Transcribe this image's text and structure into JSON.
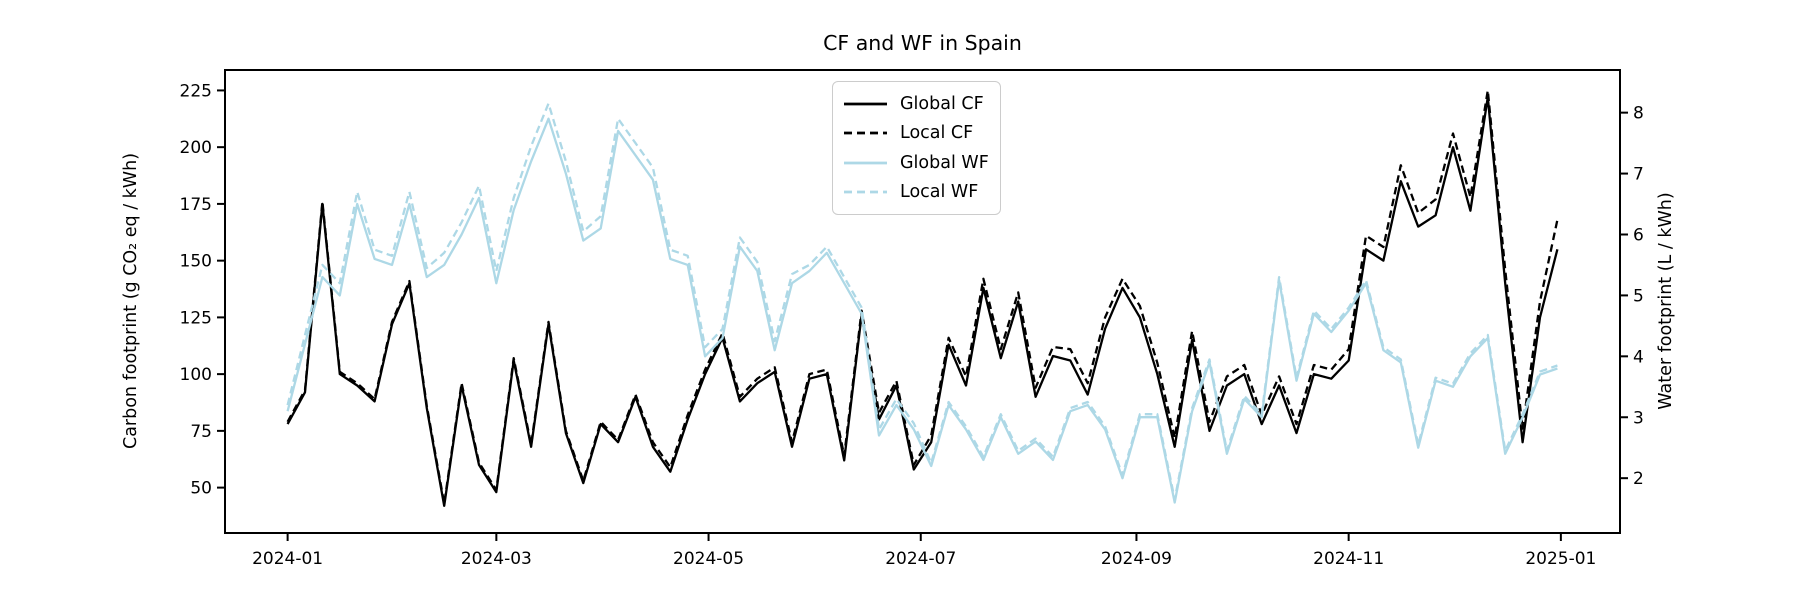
{
  "figure": {
    "title": "CF and WF in Spain"
  },
  "chart_data": {
    "type": "line",
    "title": "CF and WF in Spain",
    "ylabel_left": "Carbon footprint (g CO₂ eq / kWh)",
    "ylabel_right": "Water footprint (L / kWh)",
    "x_tick_labels": [
      "2024-01",
      "2024-03",
      "2024-05",
      "2024-07",
      "2024-09",
      "2024-11",
      "2025-01"
    ],
    "yticks_left": [
      50,
      75,
      100,
      125,
      150,
      175,
      200,
      225
    ],
    "yticks_right": [
      2,
      3,
      4,
      5,
      6,
      7,
      8
    ],
    "ylim_left": [
      30,
      234
    ],
    "ylim_right": [
      1.1,
      8.7
    ],
    "xlim": [
      "2023-12-14",
      "2025-01-18"
    ],
    "grid": false,
    "legend_position": "upper center",
    "colors": {
      "cf": "#000000",
      "wf": "#add8e6"
    },
    "sampling_note": "values estimated from plot at ~5-day resolution",
    "dates": [
      "2024-01-01",
      "2024-01-06",
      "2024-01-11",
      "2024-01-16",
      "2024-01-21",
      "2024-01-26",
      "2024-01-31",
      "2024-02-05",
      "2024-02-10",
      "2024-02-15",
      "2024-02-20",
      "2024-02-25",
      "2024-03-01",
      "2024-03-06",
      "2024-03-11",
      "2024-03-16",
      "2024-03-21",
      "2024-03-26",
      "2024-03-31",
      "2024-04-05",
      "2024-04-10",
      "2024-04-15",
      "2024-04-20",
      "2024-04-25",
      "2024-04-30",
      "2024-05-05",
      "2024-05-10",
      "2024-05-15",
      "2024-05-20",
      "2024-05-25",
      "2024-05-30",
      "2024-06-04",
      "2024-06-09",
      "2024-06-14",
      "2024-06-19",
      "2024-06-24",
      "2024-06-29",
      "2024-07-04",
      "2024-07-09",
      "2024-07-14",
      "2024-07-19",
      "2024-07-24",
      "2024-07-29",
      "2024-08-03",
      "2024-08-08",
      "2024-08-13",
      "2024-08-18",
      "2024-08-23",
      "2024-08-28",
      "2024-09-02",
      "2024-09-07",
      "2024-09-12",
      "2024-09-17",
      "2024-09-22",
      "2024-09-27",
      "2024-10-02",
      "2024-10-07",
      "2024-10-12",
      "2024-10-17",
      "2024-10-22",
      "2024-10-27",
      "2024-11-01",
      "2024-11-06",
      "2024-11-11",
      "2024-11-16",
      "2024-11-21",
      "2024-11-26",
      "2024-12-01",
      "2024-12-06",
      "2024-12-11",
      "2024-12-16",
      "2024-12-21",
      "2024-12-26",
      "2024-12-31"
    ],
    "series": [
      {
        "name": "Global CF",
        "axis": "left",
        "color": "#000000",
        "line_style": "solid",
        "values": [
          78,
          92,
          175,
          100,
          95,
          88,
          122,
          140,
          85,
          42,
          95,
          60,
          48,
          106,
          68,
          122,
          74,
          52,
          78,
          70,
          90,
          68,
          57,
          80,
          100,
          116,
          88,
          96,
          101,
          68,
          98,
          100,
          62,
          126,
          80,
          95,
          58,
          70,
          113,
          95,
          138,
          107,
          132,
          90,
          108,
          106,
          91,
          120,
          138,
          125,
          100,
          68,
          115,
          75,
          95,
          100,
          78,
          95,
          74,
          100,
          98,
          106,
          155,
          150,
          185,
          165,
          170,
          200,
          172,
          222,
          140,
          70,
          125,
          155
        ]
      },
      {
        "name": "Local CF",
        "axis": "left",
        "color": "#000000",
        "line_style": "dashed",
        "values": [
          79,
          93,
          176,
          101,
          96,
          89,
          123,
          141,
          86,
          43,
          96,
          61,
          49,
          107,
          69,
          123,
          75,
          53,
          79,
          71,
          91,
          70,
          59,
          82,
          102,
          118,
          90,
          98,
          103,
          70,
          100,
          102,
          64,
          128,
          83,
          97,
          60,
          73,
          116,
          99,
          142,
          111,
          136,
          94,
          112,
          111,
          96,
          125,
          142,
          130,
          105,
          72,
          119,
          79,
          99,
          104,
          82,
          99,
          78,
          104,
          102,
          111,
          161,
          156,
          192,
          171,
          177,
          206,
          178,
          225,
          146,
          76,
          132,
          168
        ]
      },
      {
        "name": "Global WF",
        "axis": "right",
        "color": "#add8e6",
        "line_style": "solid",
        "values": [
          3.1,
          4.2,
          5.3,
          5.0,
          6.5,
          5.6,
          5.5,
          6.5,
          5.3,
          5.5,
          6.0,
          6.6,
          5.2,
          6.4,
          7.2,
          7.9,
          7.0,
          5.9,
          6.1,
          7.7,
          7.3,
          6.9,
          5.6,
          5.5,
          4.0,
          4.3,
          5.8,
          5.4,
          4.1,
          5.2,
          5.4,
          5.7,
          5.2,
          4.7,
          2.7,
          3.2,
          2.8,
          2.2,
          3.2,
          2.8,
          2.3,
          3.0,
          2.4,
          2.6,
          2.3,
          3.1,
          3.2,
          2.8,
          2.0,
          3.0,
          3.0,
          1.6,
          3.1,
          3.9,
          2.4,
          3.3,
          3.0,
          5.25,
          3.6,
          4.7,
          4.4,
          4.75,
          5.2,
          4.1,
          3.9,
          2.5,
          3.6,
          3.5,
          4.0,
          4.3,
          2.4,
          3.0,
          3.7,
          3.8
        ]
      },
      {
        "name": "Local WF",
        "axis": "right",
        "color": "#add8e6",
        "line_style": "dashed",
        "values": [
          3.2,
          4.35,
          5.5,
          5.2,
          6.7,
          5.75,
          5.65,
          6.7,
          5.45,
          5.7,
          6.2,
          6.8,
          5.4,
          6.6,
          7.45,
          8.15,
          7.2,
          6.05,
          6.3,
          7.9,
          7.5,
          7.1,
          5.75,
          5.65,
          4.15,
          4.45,
          5.95,
          5.55,
          4.25,
          5.35,
          5.5,
          5.8,
          5.3,
          4.8,
          2.8,
          3.3,
          2.9,
          2.25,
          3.25,
          2.85,
          2.35,
          3.05,
          2.45,
          2.65,
          2.35,
          3.15,
          3.25,
          2.85,
          2.05,
          3.05,
          3.05,
          1.65,
          3.15,
          3.95,
          2.45,
          3.35,
          3.05,
          5.3,
          3.65,
          4.75,
          4.45,
          4.8,
          5.25,
          4.15,
          3.95,
          2.55,
          3.65,
          3.55,
          4.05,
          4.35,
          2.45,
          3.05,
          3.75,
          3.85
        ]
      }
    ]
  }
}
